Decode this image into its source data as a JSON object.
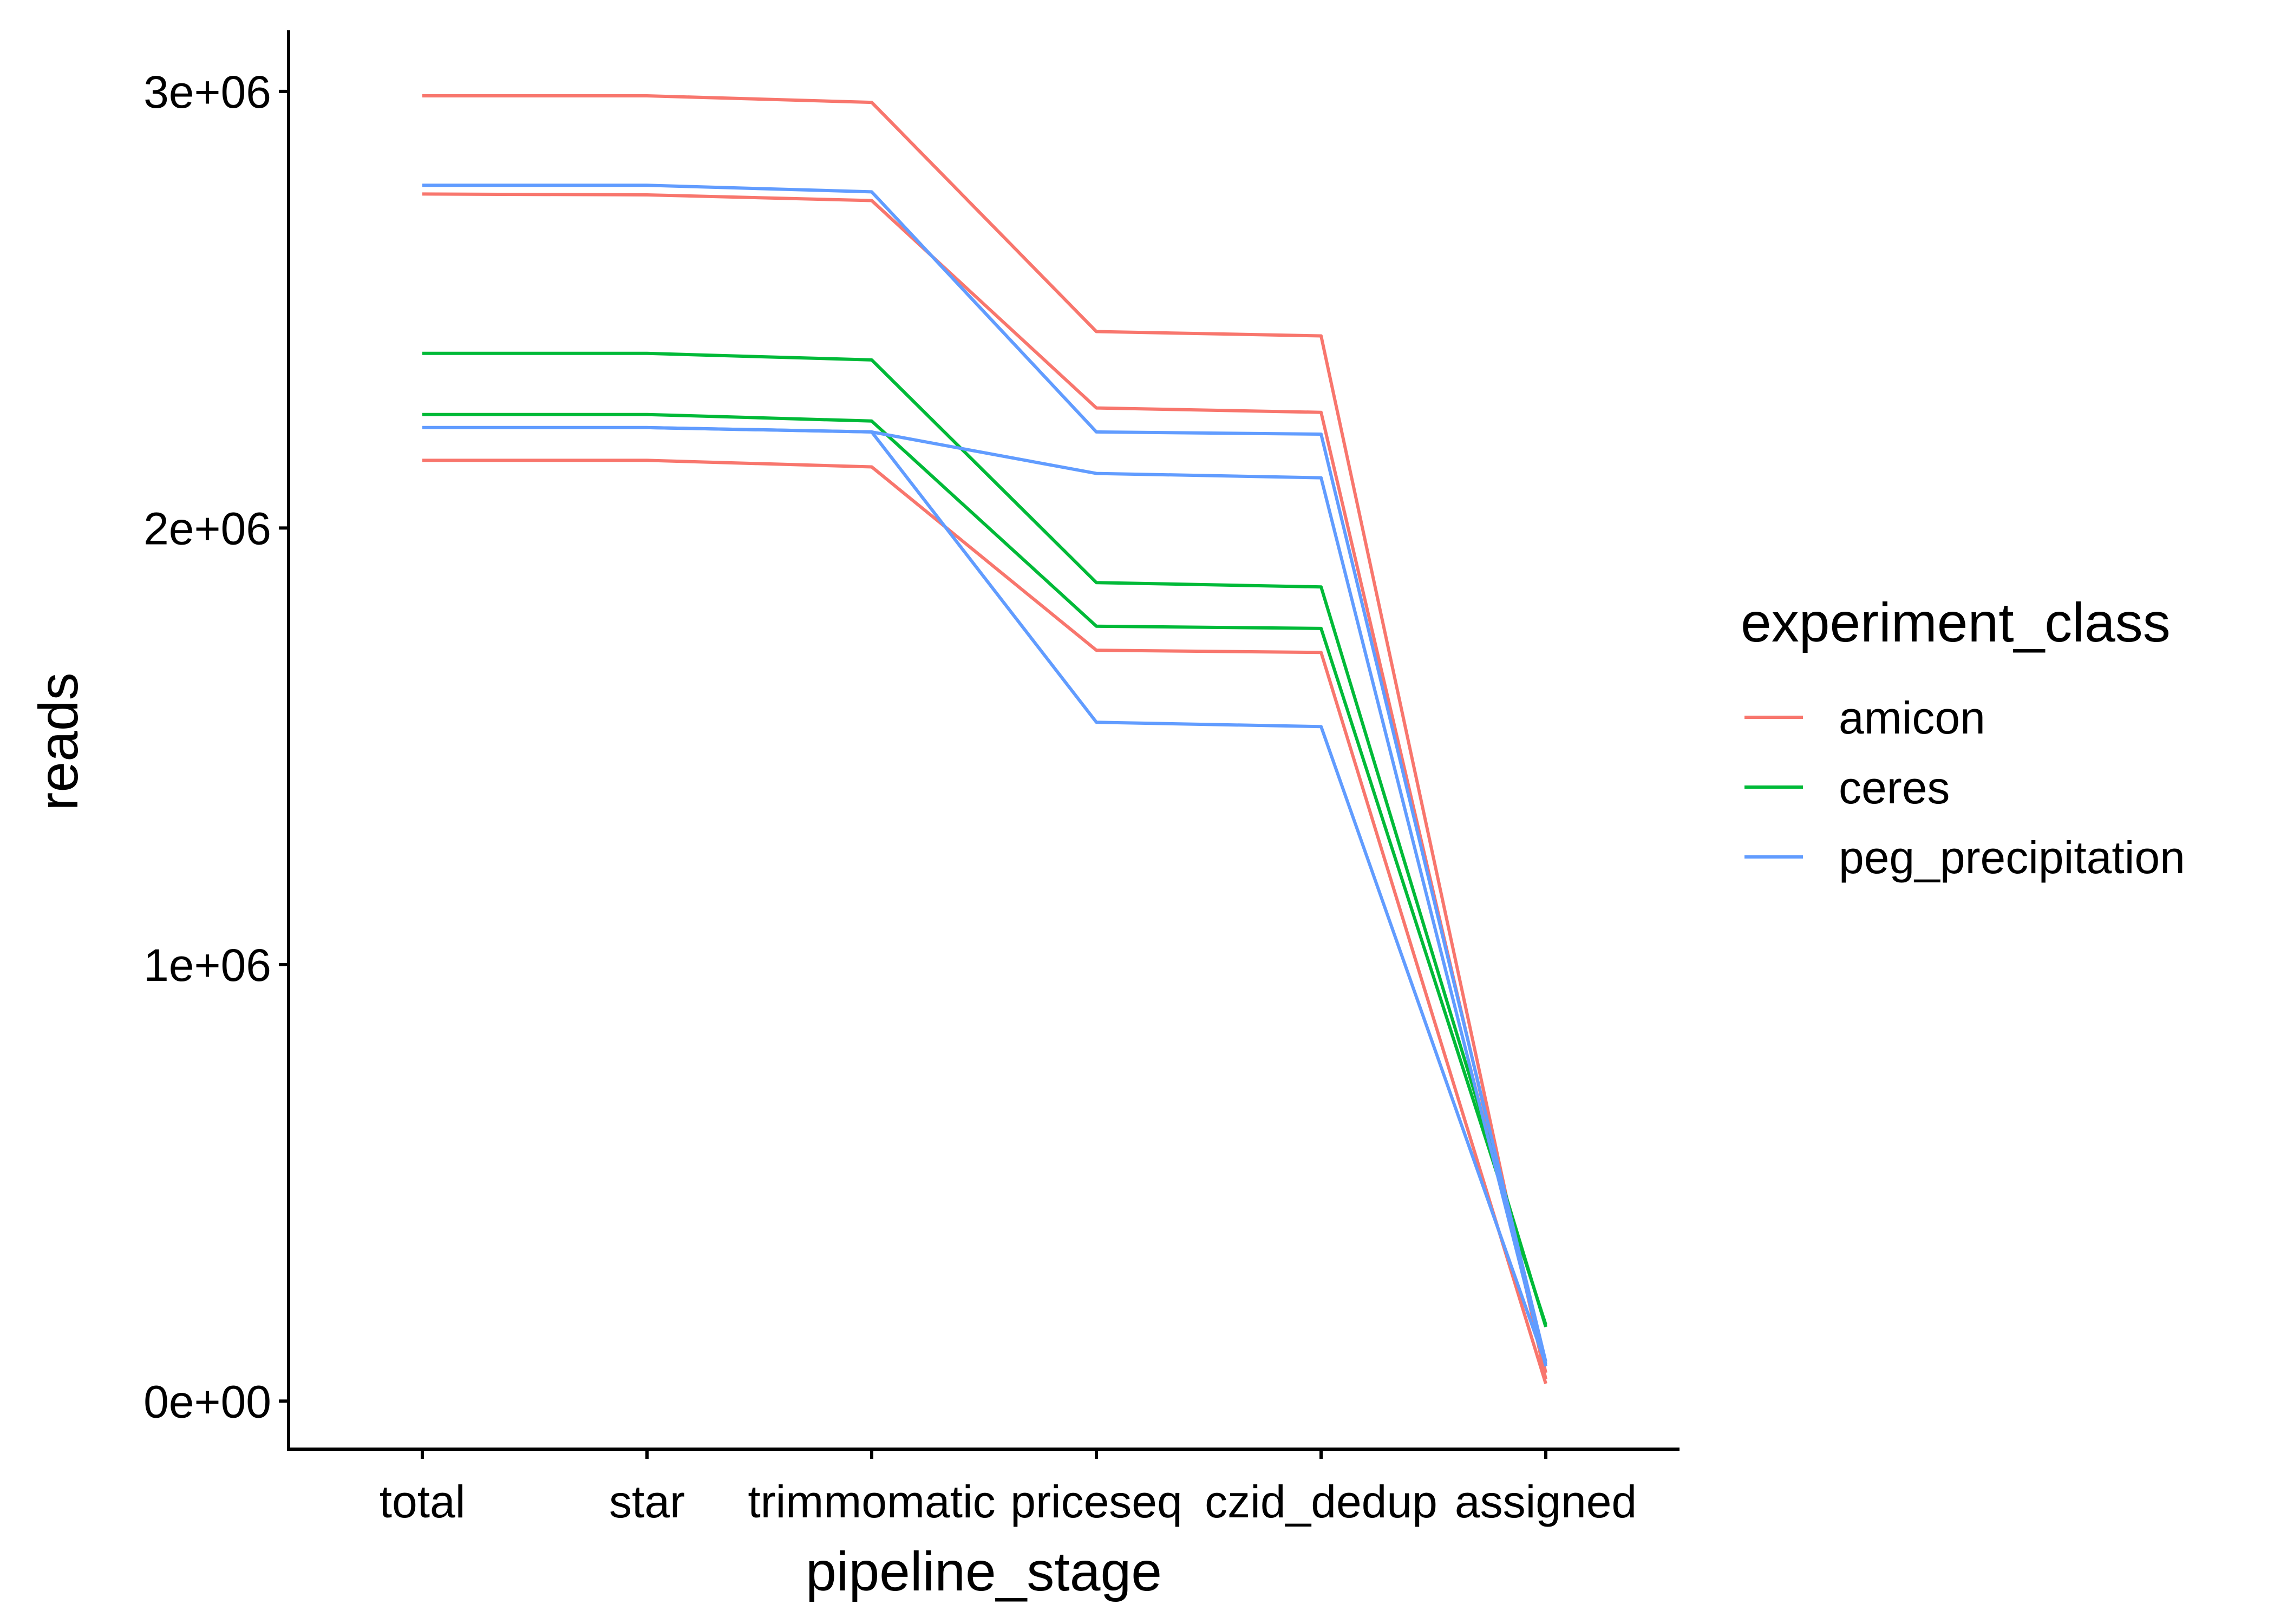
{
  "chart_data": {
    "type": "line",
    "xlabel": "pipeline_stage",
    "ylabel": "reads",
    "categories": [
      "total",
      "star",
      "trimmomatic",
      "priceseq",
      "czid_dedup",
      "assigned"
    ],
    "y_ticks": [
      {
        "value": 0,
        "label": "0e+00"
      },
      {
        "value": 1000000,
        "label": "1e+06"
      },
      {
        "value": 2000000,
        "label": "2e+06"
      },
      {
        "value": 3000000,
        "label": "3e+06"
      }
    ],
    "ylim": [
      -110000,
      3140000
    ],
    "grid": false,
    "legend": {
      "title": "experiment_class",
      "position": "right",
      "entries": [
        {
          "label": "amicon",
          "color": "#F8766D"
        },
        {
          "label": "ceres",
          "color": "#00BA38"
        },
        {
          "label": "peg_precipitation",
          "color": "#619CFF"
        }
      ]
    },
    "series": [
      {
        "group": "amicon",
        "color": "#F8766D",
        "values": [
          2990000,
          2990000,
          2975000,
          2450000,
          2440000,
          50000
        ]
      },
      {
        "group": "amicon",
        "color": "#F8766D",
        "values": [
          2765000,
          2763000,
          2750000,
          2275000,
          2265000,
          65000
        ]
      },
      {
        "group": "amicon",
        "color": "#F8766D",
        "values": [
          2155000,
          2155000,
          2140000,
          1720000,
          1715000,
          40000
        ]
      },
      {
        "group": "ceres",
        "color": "#00BA38",
        "values": [
          2400000,
          2400000,
          2385000,
          1875000,
          1865000,
          170000
        ]
      },
      {
        "group": "ceres",
        "color": "#00BA38",
        "values": [
          2260000,
          2260000,
          2245000,
          1775000,
          1770000,
          175000
        ]
      },
      {
        "group": "peg_precipitation",
        "color": "#619CFF",
        "values": [
          2785000,
          2785000,
          2770000,
          2220000,
          2215000,
          90000
        ]
      },
      {
        "group": "peg_precipitation",
        "color": "#619CFF",
        "values": [
          2230000,
          2230000,
          2220000,
          2125000,
          2115000,
          80000
        ]
      },
      {
        "group": "peg_precipitation",
        "color": "#619CFF",
        "values": [
          2230000,
          2230000,
          2220000,
          1555000,
          1545000,
          85000
        ]
      }
    ]
  }
}
